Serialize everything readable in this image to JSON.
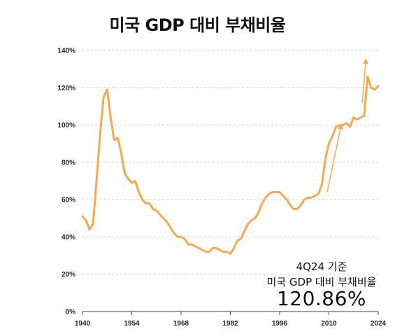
{
  "chart_data": {
    "type": "line",
    "title": "미국 GDP 대비 부채비율",
    "xlabel": "",
    "ylabel": "",
    "xlim": [
      1940,
      2024
    ],
    "ylim": [
      0,
      140
    ],
    "x_ticks": [
      1940,
      1954,
      1968,
      1982,
      1996,
      2010,
      2024
    ],
    "x_tick_labels": [
      "1940",
      "1954",
      "1968",
      "1982",
      "1996",
      "2010",
      "2024"
    ],
    "y_ticks": [
      0,
      20,
      40,
      60,
      80,
      100,
      120,
      140
    ],
    "y_tick_labels": [
      "0%",
      "20%",
      "40%",
      "60%",
      "80%",
      "100%",
      "120%",
      "140%"
    ],
    "grid": "horizontal dashed",
    "line_color": "#F5AA50",
    "series": [
      {
        "x": [
          1940,
          1941,
          1942,
          1943,
          1944,
          1945,
          1946,
          1947,
          1948,
          1949,
          1950,
          1951,
          1952,
          1953,
          1954,
          1955,
          1956,
          1957,
          1958,
          1959,
          1960,
          1961,
          1962,
          1963,
          1964,
          1965,
          1966,
          1967,
          1968,
          1969,
          1970,
          1971,
          1972,
          1973,
          1974,
          1975,
          1976,
          1977,
          1978,
          1979,
          1980,
          1981,
          1982,
          1983,
          1984,
          1985,
          1986,
          1987,
          1988,
          1989,
          1990,
          1991,
          1992,
          1993,
          1994,
          1995,
          1996,
          1997,
          1998,
          1999,
          2000,
          2001,
          2002,
          2003,
          2004,
          2005,
          2006,
          2007,
          2008,
          2009,
          2010,
          2011,
          2012,
          2013,
          2014,
          2015,
          2016,
          2017,
          2018,
          2019,
          2020,
          2021,
          2022,
          2023,
          2024
        ],
        "y": [
          51,
          49,
          44,
          47,
          70,
          95,
          115,
          119,
          104,
          92,
          93,
          85,
          74,
          71,
          69,
          70,
          64,
          60,
          58,
          58,
          55,
          54,
          52,
          50,
          48,
          45,
          42,
          40,
          40,
          39,
          36,
          36,
          35,
          34,
          33,
          32,
          32,
          34,
          34,
          33,
          32,
          32,
          31,
          34,
          38,
          39,
          43,
          47,
          49,
          50,
          53,
          58,
          61,
          63,
          64,
          64,
          64,
          62,
          60,
          57,
          55,
          55,
          57,
          60,
          61,
          61,
          62,
          63,
          68,
          82,
          90,
          94,
          99,
          100,
          100,
          101,
          99,
          104,
          103,
          104,
          105,
          126,
          120,
          119,
          120.86
        ]
      }
    ],
    "trend_arrows": [
      {
        "from": [
          2009.5,
          64
        ],
        "to": [
          2013.5,
          100
        ]
      },
      {
        "from": [
          2019.5,
          112
        ],
        "to": [
          2020.5,
          135
        ]
      }
    ],
    "annotation": {
      "line1": "4Q24 기준",
      "line2": "미국 GDP 대비 부채비율",
      "value": "120.86%"
    }
  }
}
